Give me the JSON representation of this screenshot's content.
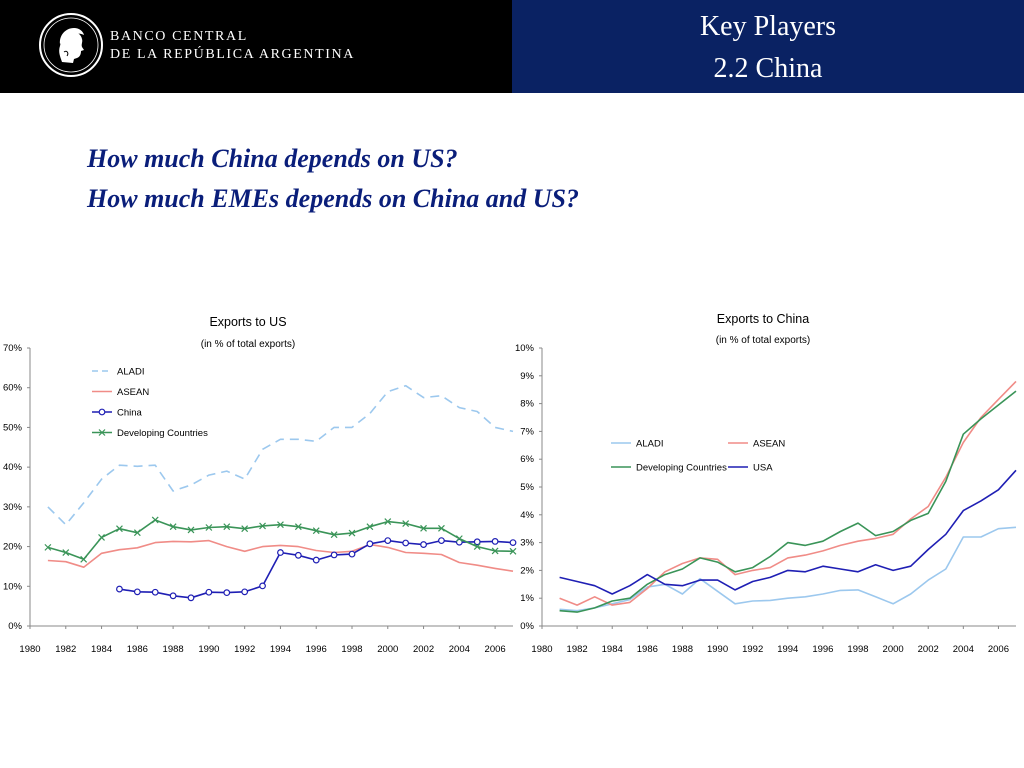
{
  "header": {
    "bank_name_line1": "BANCO CENTRAL",
    "bank_name_line2": "DE LA REPÚBLICA ARGENTINA",
    "logo_icon": "republic-head-seal-icon",
    "title_line1": "Key Players",
    "title_line2": "2.2 China",
    "left_bg": "#000000",
    "right_bg": "#0a2263"
  },
  "questions": {
    "line1": "How much China depends on US?",
    "line2": "How much EMEs depends on China and US?",
    "color": "#0a1e7a"
  },
  "chart_data": [
    {
      "type": "line",
      "title": "Exports to US",
      "subtitle": "(in % of total exports)",
      "x_ticks": [
        "1980",
        "1982",
        "1984",
        "1986",
        "1988",
        "1990",
        "1992",
        "1994",
        "1996",
        "1998",
        "2000",
        "2002",
        "2004",
        "2006"
      ],
      "y_ticks": [
        "0%",
        "10%",
        "20%",
        "30%",
        "40%",
        "50%",
        "60%",
        "70%"
      ],
      "ylim": [
        0,
        70
      ],
      "xlim": [
        1980,
        2007
      ],
      "legend_position": "upper-left",
      "grid": false,
      "series": [
        {
          "name": "ALADI",
          "color": "#9cc8ee",
          "style": "dashed",
          "marker": "none",
          "x": [
            1981,
            1982,
            1983,
            1984,
            1985,
            1986,
            1987,
            1988,
            1989,
            1990,
            1991,
            1992,
            1993,
            1994,
            1995,
            1996,
            1997,
            1998,
            1999,
            2000,
            2001,
            2002,
            2003,
            2004,
            2005,
            2006,
            2007
          ],
          "y": [
            30,
            25.5,
            31,
            37,
            40.5,
            40.2,
            40.5,
            34,
            35.5,
            38,
            39,
            37,
            44.5,
            47,
            47,
            46.5,
            50,
            50,
            53.5,
            59,
            60.5,
            57.5,
            58,
            55,
            54,
            50,
            49
          ]
        },
        {
          "name": "ASEAN",
          "color": "#f08c87",
          "style": "solid",
          "marker": "none",
          "x": [
            1981,
            1982,
            1983,
            1984,
            1985,
            1986,
            1987,
            1988,
            1989,
            1990,
            1991,
            1992,
            1993,
            1994,
            1995,
            1996,
            1997,
            1998,
            1999,
            2000,
            2001,
            2002,
            2003,
            2004,
            2005,
            2006,
            2007
          ],
          "y": [
            16.5,
            16.2,
            14.8,
            18.3,
            19.2,
            19.7,
            21,
            21.3,
            21.2,
            21.5,
            20,
            18.8,
            20,
            20.3,
            20,
            19,
            18.5,
            18.8,
            20.5,
            19.8,
            18.5,
            18.3,
            18,
            16,
            15.3,
            14.5,
            13.8
          ]
        },
        {
          "name": "China",
          "color": "#1f1fb4",
          "style": "solid",
          "marker": "circle",
          "x": [
            1985,
            1986,
            1987,
            1988,
            1989,
            1990,
            1991,
            1992,
            1993,
            1994,
            1995,
            1996,
            1997,
            1998,
            1999,
            2000,
            2001,
            2002,
            2003,
            2004,
            2005,
            2006,
            2007
          ],
          "y": [
            9.3,
            8.6,
            8.5,
            7.6,
            7.1,
            8.5,
            8.4,
            8.6,
            10.1,
            18.5,
            17.8,
            16.6,
            17.9,
            18.1,
            20.7,
            21.5,
            20.9,
            20.5,
            21.5,
            21.1,
            21.2,
            21.3,
            21
          ]
        },
        {
          "name": "Developing Countries",
          "color": "#3a9458",
          "style": "solid",
          "marker": "x",
          "x": [
            1981,
            1982,
            1983,
            1984,
            1985,
            1986,
            1987,
            1988,
            1989,
            1990,
            1991,
            1992,
            1993,
            1994,
            1995,
            1996,
            1997,
            1998,
            1999,
            2000,
            2001,
            2002,
            2003,
            2004,
            2005,
            2006,
            2007
          ],
          "y": [
            19.8,
            18.5,
            16.8,
            22.3,
            24.5,
            23.5,
            26.7,
            25,
            24.2,
            24.8,
            25,
            24.5,
            25.2,
            25.5,
            25,
            24,
            23,
            23.4,
            25,
            26.3,
            25.8,
            24.6,
            24.6,
            22,
            20,
            18.9,
            18.8
          ]
        }
      ]
    },
    {
      "type": "line",
      "title": "Exports to China",
      "subtitle": "(in % of total exports)",
      "x_ticks": [
        "1980",
        "1982",
        "1984",
        "1986",
        "1988",
        "1990",
        "1992",
        "1994",
        "1996",
        "1998",
        "2000",
        "2002",
        "2004",
        "2006"
      ],
      "y_ticks": [
        "0%",
        "1%",
        "2%",
        "3%",
        "4%",
        "5%",
        "6%",
        "7%",
        "8%",
        "9%",
        "10%"
      ],
      "ylim": [
        0,
        10
      ],
      "xlim": [
        1980,
        2007
      ],
      "legend_position": "center-left",
      "grid": false,
      "series": [
        {
          "name": "ALADI",
          "color": "#9cc8ee",
          "style": "solid",
          "marker": "none",
          "x": [
            1981,
            1982,
            1983,
            1984,
            1985,
            1986,
            1987,
            1988,
            1989,
            1990,
            1991,
            1992,
            1993,
            1994,
            1995,
            1996,
            1997,
            1998,
            1999,
            2000,
            2001,
            2002,
            2003,
            2004,
            2005,
            2006,
            2007
          ],
          "y": [
            0.6,
            0.55,
            0.65,
            0.8,
            0.95,
            1.4,
            1.5,
            1.15,
            1.7,
            1.25,
            0.8,
            0.9,
            0.92,
            1,
            1.05,
            1.15,
            1.28,
            1.3,
            1.05,
            0.8,
            1.15,
            1.65,
            2.05,
            3.2,
            3.2,
            3.5,
            3.55
          ]
        },
        {
          "name": "ASEAN",
          "color": "#f08c87",
          "style": "solid",
          "marker": "none",
          "x": [
            1981,
            1982,
            1983,
            1984,
            1985,
            1986,
            1987,
            1988,
            1989,
            1990,
            1991,
            1992,
            1993,
            1994,
            1995,
            1996,
            1997,
            1998,
            1999,
            2000,
            2001,
            2002,
            2003,
            2004,
            2005,
            2006,
            2007
          ],
          "y": [
            1,
            0.75,
            1.05,
            0.75,
            0.85,
            1.35,
            1.95,
            2.25,
            2.45,
            2.4,
            1.85,
            2,
            2.1,
            2.45,
            2.55,
            2.7,
            2.9,
            3.05,
            3.15,
            3.3,
            3.85,
            4.3,
            5.35,
            6.6,
            7.5,
            8.15,
            8.8
          ]
        },
        {
          "name": "Developing Countries",
          "color": "#3a9458",
          "style": "solid",
          "marker": "none",
          "x": [
            1981,
            1982,
            1983,
            1984,
            1985,
            1986,
            1987,
            1988,
            1989,
            1990,
            1991,
            1992,
            1993,
            1994,
            1995,
            1996,
            1997,
            1998,
            1999,
            2000,
            2001,
            2002,
            2003,
            2004,
            2005,
            2006,
            2007
          ],
          "y": [
            0.55,
            0.5,
            0.65,
            0.9,
            1,
            1.5,
            1.85,
            2.05,
            2.45,
            2.3,
            1.95,
            2.1,
            2.5,
            3,
            2.9,
            3.05,
            3.4,
            3.7,
            3.25,
            3.4,
            3.8,
            4.05,
            5.2,
            6.9,
            7.45,
            7.95,
            8.45
          ]
        },
        {
          "name": "USA",
          "color": "#1f1fb4",
          "style": "solid",
          "marker": "none",
          "x": [
            1981,
            1982,
            1983,
            1984,
            1985,
            1986,
            1987,
            1988,
            1989,
            1990,
            1991,
            1992,
            1993,
            1994,
            1995,
            1996,
            1997,
            1998,
            1999,
            2000,
            2001,
            2002,
            2003,
            2004,
            2005,
            2006,
            2007
          ],
          "y": [
            1.75,
            1.6,
            1.45,
            1.15,
            1.45,
            1.85,
            1.5,
            1.45,
            1.65,
            1.65,
            1.3,
            1.6,
            1.75,
            2,
            1.95,
            2.15,
            2.05,
            1.95,
            2.2,
            2,
            2.15,
            2.75,
            3.3,
            4.15,
            4.5,
            4.9,
            5.6
          ]
        }
      ]
    }
  ]
}
